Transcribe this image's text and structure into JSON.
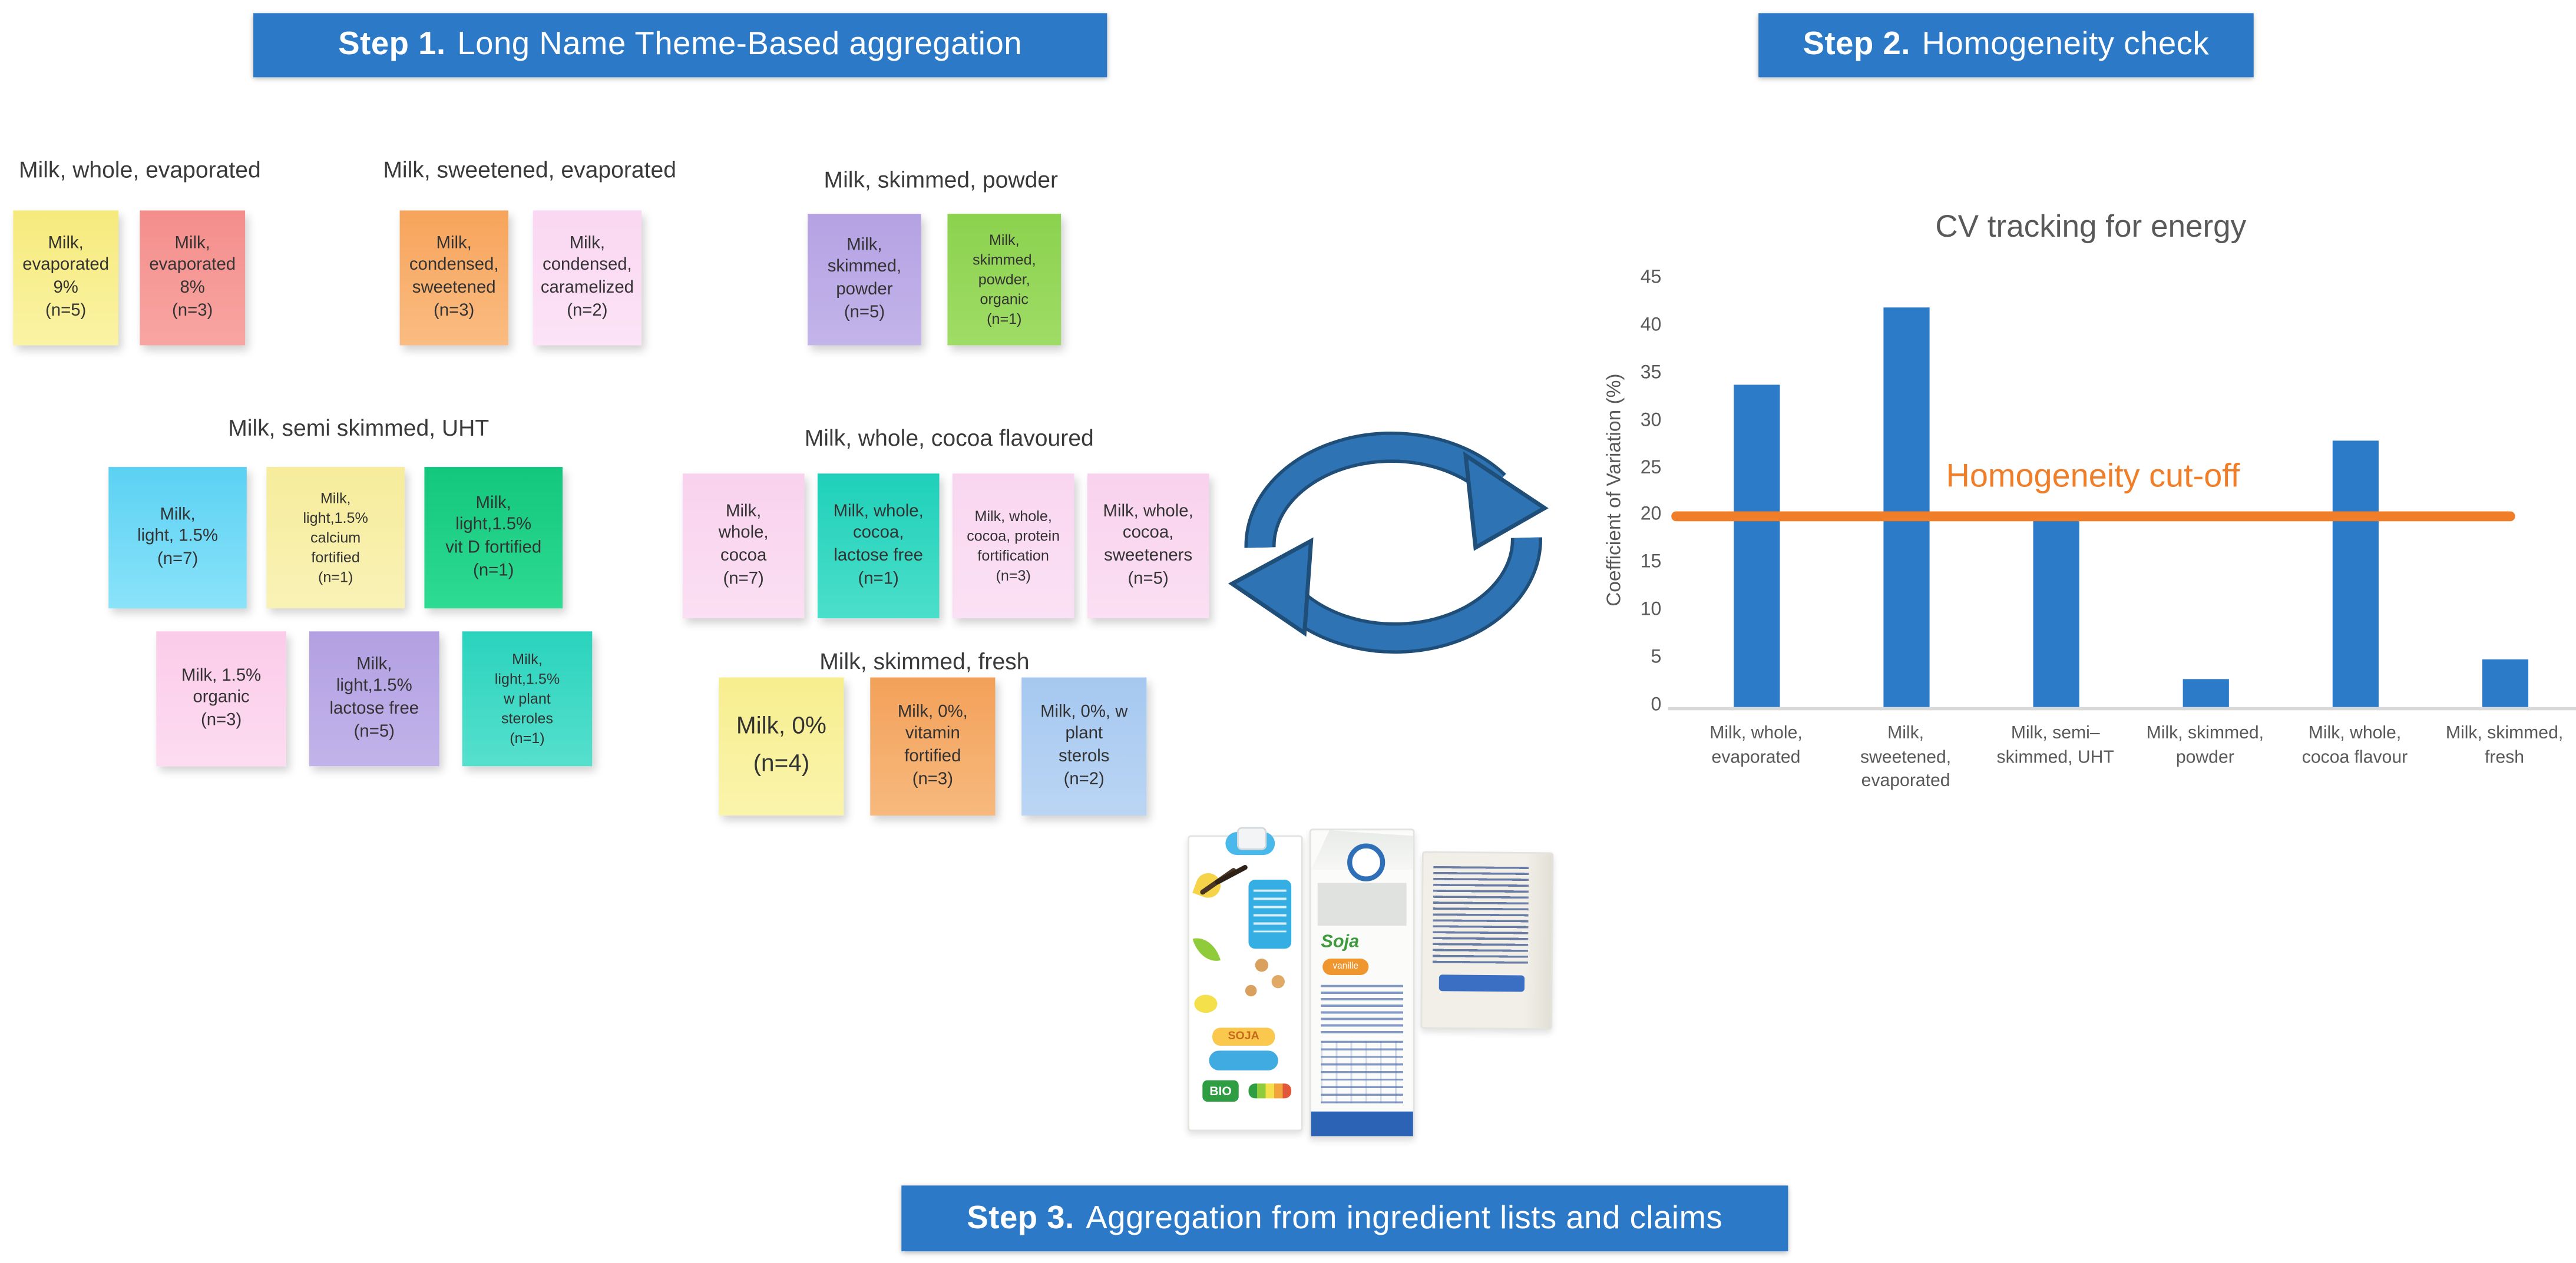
{
  "steps": {
    "step1": {
      "bold": "Step 1.",
      "text": "Long Name Theme-Based aggregation"
    },
    "step2": {
      "bold": "Step 2.",
      "text": "Homogeneity check"
    },
    "step3": {
      "bold": "Step 3.",
      "text": "Aggregation from ingredient lists and claims"
    }
  },
  "theme": {
    "step_bg": "#2B79C7",
    "bar_color": "#2B7BC9",
    "cutoff_color": "#F07D28",
    "axis_text": "#595959",
    "note_text": "#333333",
    "arrow_blue": "#2E74B5",
    "arrow_outline": "#1F4E79"
  },
  "groups": [
    {
      "title": "Milk, whole, evaporated",
      "rows": [
        [
          {
            "text": "Milk,\nevaporated\n9%\n(n=5)",
            "c1": "#F6EA7C",
            "c2": "#FAF3A4"
          },
          {
            "text": "Milk,\nevaporated\n8%\n(n=3)",
            "c1": "#F48E8B",
            "c2": "#F8A5A2"
          }
        ]
      ]
    },
    {
      "title": "Milk, sweetened, evaporated",
      "rows": [
        [
          {
            "text": "Milk,\ncondensed,\nsweetened\n(n=3)",
            "c1": "#F7A45B",
            "c2": "#FABC82"
          },
          {
            "text": "Milk,\ncondensed,\ncaramelized\n(n=2)",
            "c1": "#FAD7F2",
            "c2": "#FCE3F6"
          }
        ]
      ]
    },
    {
      "title": "Milk, skimmed, powder",
      "rows": [
        [
          {
            "text": "Milk,\nskimmed,\npowder\n(n=5)",
            "c1": "#B4A2E3",
            "c2": "#C3B4EA"
          },
          {
            "text": "Milk,\nskimmed,\npowder,\norganic\n(n=1)",
            "c1": "#8CD24E",
            "c2": "#9FDC66",
            "size": "sm"
          }
        ]
      ]
    },
    {
      "title": "Milk, semi skimmed, UHT",
      "rows": [
        [
          {
            "text": "Milk,\nlight, 1.5%\n(n=7)",
            "c1": "#5BD1F3",
            "c2": "#8AE3F9"
          },
          {
            "text": "Milk,\nlight,1.5%\ncalcium\nfortified\n(n=1)",
            "c1": "#F6EC9B",
            "c2": "#F9F2B6",
            "size": "sm"
          },
          {
            "text": "Milk,\nlight,1.5%\nvit D fortified\n(n=1)",
            "c1": "#12C77C",
            "c2": "#2EDB92"
          }
        ],
        [
          {
            "text": "Milk, 1.5%\norganic\n(n=3)",
            "c1": "#FBCBE9",
            "c2": "#FDDCF1"
          },
          {
            "text": "Milk,\nlight,1.5%\nlactose free\n(n=5)",
            "c1": "#B2A0E2",
            "c2": "#C2B3EA"
          },
          {
            "text": "Milk,\nlight,1.5%\nw plant\nsteroles\n(n=1)",
            "c1": "#2AD3BD",
            "c2": "#55E0CD",
            "size": "sm"
          }
        ]
      ]
    },
    {
      "title": "Milk, whole, cocoa flavoured",
      "rows": [
        [
          {
            "text": "Milk,\nwhole,\ncocoa\n(n=7)",
            "c1": "#F9D2EE",
            "c2": "#FBDFF3"
          },
          {
            "text": "Milk, whole,\ncocoa,\nlactose free\n(n=1)",
            "c1": "#1FD0B9",
            "c2": "#4BDFCA"
          },
          {
            "text": "Milk, whole,\ncocoa, protein\nfortification\n(n=3)",
            "c1": "#F9D6F0",
            "c2": "#FBE1F5",
            "size": "sm"
          },
          {
            "text": "Milk, whole,\ncocoa,\nsweeteners\n(n=5)",
            "c1": "#F9D2EE",
            "c2": "#FBDFF3"
          }
        ]
      ]
    },
    {
      "title": "Milk, skimmed, fresh",
      "rows": [
        [
          {
            "text": "Milk, 0%\n(n=4)",
            "c1": "#F7EE8F",
            "c2": "#FAF4AC",
            "size": "lg"
          },
          {
            "text": "Milk, 0%,\nvitamin\nfortified\n(n=3)",
            "c1": "#F3A159",
            "c2": "#F7B97E"
          },
          {
            "text": "Milk, 0%, w\nplant\nsterols\n(n=2)",
            "c1": "#A5C8F0",
            "c2": "#BBD5F4"
          }
        ]
      ]
    }
  ],
  "cycle_icon": "circular-refresh-arrows",
  "products": {
    "front_carton": {
      "brand": "SOJA",
      "bio": "BIO"
    },
    "side_carton": {
      "brand": "Soja",
      "flavor": "vanille"
    }
  },
  "chart_data": {
    "type": "bar",
    "title": "CV tracking for energy",
    "ylabel": "Coefficient of Variation (%)",
    "xlabel": "",
    "categories": [
      "Milk, whole,\nevaporated",
      "Milk,\nsweetened,\nevaporated",
      "Milk, semi–\nskimmed, UHT",
      "Milk, skimmed,\npowder",
      "Milk, whole,\ncocoa flavour",
      "Milk, skimmed,\nfresh"
    ],
    "values": [
      34,
      42,
      20,
      3,
      28,
      5
    ],
    "ylim": [
      0,
      45
    ],
    "yticks": [
      45,
      40,
      35,
      30,
      25,
      20,
      15,
      10,
      5,
      0
    ],
    "grid": false,
    "legend": "none",
    "cutoff": {
      "value": 20,
      "label": "Homogeneity cut-off"
    }
  }
}
